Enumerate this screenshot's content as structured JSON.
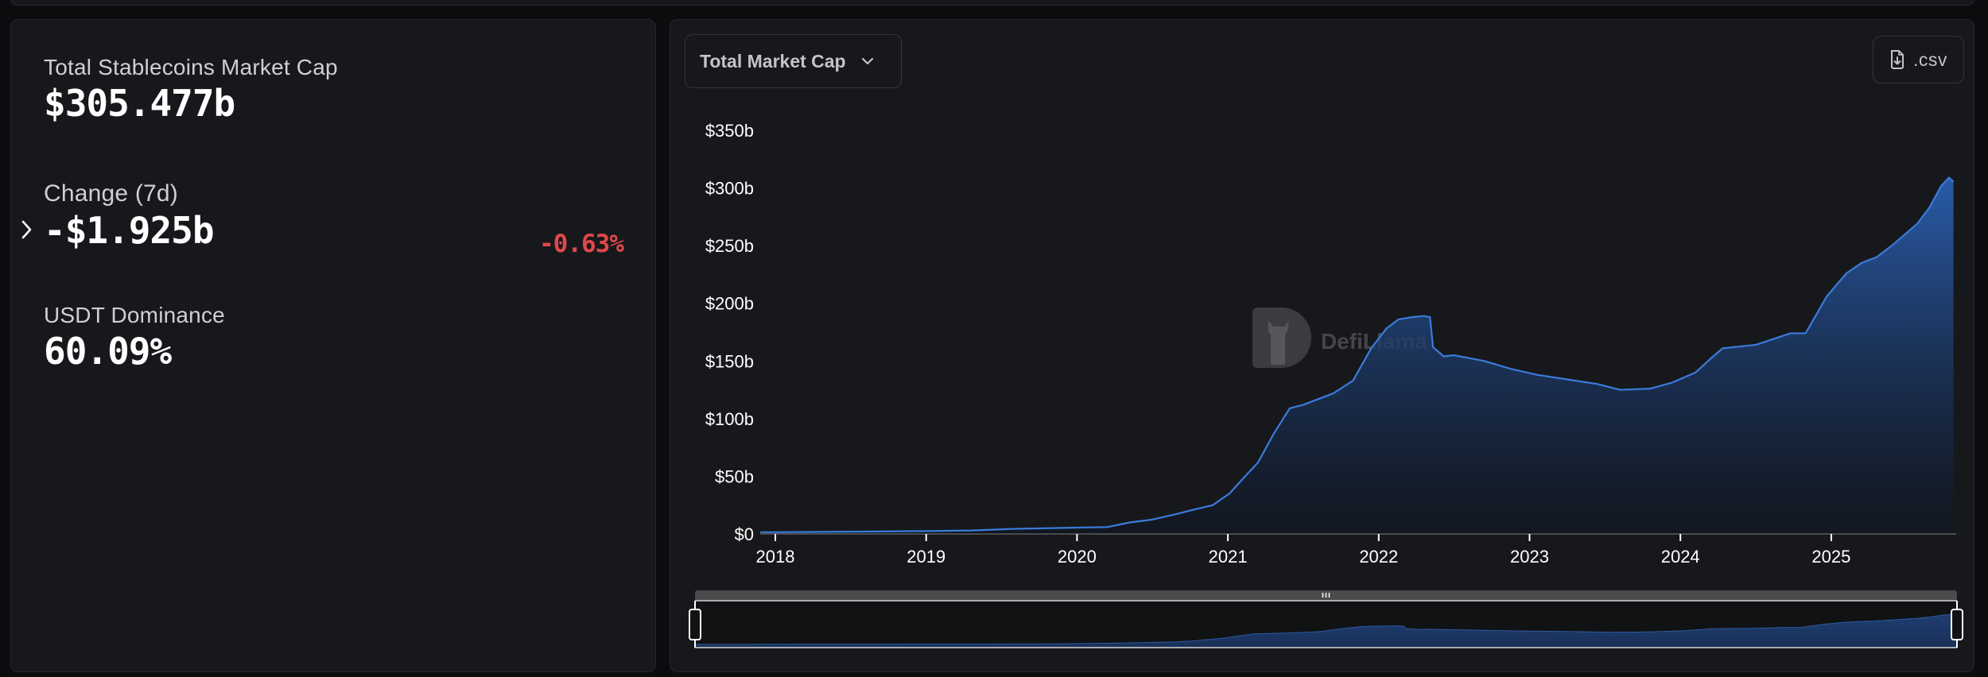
{
  "stats": {
    "market_cap": {
      "label": "Total Stablecoins Market Cap",
      "value": "$305.477b"
    },
    "change_7d": {
      "label": "Change (7d)",
      "value": "-$1.925b",
      "percent": "-0.63%",
      "percent_color": "#e0484a"
    },
    "usdt_dominance": {
      "label": "USDT Dominance",
      "value": "60.09%"
    }
  },
  "chart_toolbar": {
    "metric_select": "Total Market Cap",
    "csv_label": ".csv",
    "csv_icon": "file-download-icon",
    "dropdown_icon": "chevron-down-icon"
  },
  "watermark": {
    "text": "DefiLlama",
    "icon": "llama-logo-icon"
  },
  "colors": {
    "line": "#3a7bdc",
    "area_top": "#2a5fb0",
    "area_bottom": "#0f1522",
    "negative": "#e0484a",
    "panel_bg": "#17181b",
    "page_bg": "#0b0c0e"
  },
  "chart_data": {
    "type": "area",
    "title": "Total Market Cap",
    "xlabel": "",
    "ylabel": "",
    "ylim": [
      0,
      350
    ],
    "xlim": [
      2017.9,
      2025.81
    ],
    "grid": false,
    "legend": null,
    "y_ticks": [
      {
        "value": 0,
        "label": "$0"
      },
      {
        "value": 50,
        "label": "$50b"
      },
      {
        "value": 100,
        "label": "$100b"
      },
      {
        "value": 150,
        "label": "$150b"
      },
      {
        "value": 200,
        "label": "$200b"
      },
      {
        "value": 250,
        "label": "$250b"
      },
      {
        "value": 300,
        "label": "$300b"
      },
      {
        "value": 350,
        "label": "$350b"
      }
    ],
    "x_ticks": [
      {
        "value": 2018,
        "label": "2018"
      },
      {
        "value": 2019,
        "label": "2019"
      },
      {
        "value": 2020,
        "label": "2020"
      },
      {
        "value": 2021,
        "label": "2021"
      },
      {
        "value": 2022,
        "label": "2022"
      },
      {
        "value": 2023,
        "label": "2023"
      },
      {
        "value": 2024,
        "label": "2024"
      },
      {
        "value": 2025,
        "label": "2025"
      }
    ],
    "series": [
      {
        "name": "Total Stablecoins Market Cap ($b)",
        "x": [
          2017.9,
          2018.0,
          2018.5,
          2019.0,
          2019.3,
          2019.6,
          2020.0,
          2020.2,
          2020.35,
          2020.5,
          2020.65,
          2020.77,
          2020.9,
          2021.01,
          2021.1,
          2021.2,
          2021.3,
          2021.41,
          2021.5,
          2021.6,
          2021.7,
          2021.83,
          2021.95,
          2022.05,
          2022.13,
          2022.22,
          2022.3,
          2022.34,
          2022.36,
          2022.43,
          2022.5,
          2022.7,
          2022.88,
          2023.05,
          2023.25,
          2023.45,
          2023.6,
          2023.8,
          2023.94,
          2024.1,
          2024.2,
          2024.28,
          2024.5,
          2024.73,
          2024.83,
          2024.97,
          2025.1,
          2025.2,
          2025.3,
          2025.41,
          2025.57,
          2025.65,
          2025.73,
          2025.78,
          2025.81
        ],
        "values": [
          1.5,
          1.5,
          2.0,
          2.5,
          3.0,
          4.5,
          5.5,
          6.0,
          10.0,
          12.5,
          17.0,
          21.0,
          25.0,
          35.0,
          48.0,
          62.0,
          86.0,
          109.0,
          112.0,
          117.0,
          122.0,
          133.0,
          161.0,
          178.0,
          186.0,
          188.0,
          189.0,
          188.0,
          162.0,
          154.0,
          155.0,
          150.0,
          143.0,
          138.0,
          134.0,
          130.0,
          125.0,
          126.0,
          131.0,
          140.0,
          152.0,
          161.0,
          164.0,
          174.0,
          174.0,
          206.0,
          226.0,
          235.0,
          240.0,
          251.0,
          269.0,
          283.0,
          302.0,
          309.0,
          305.5
        ]
      }
    ],
    "annotations": [
      "DefiLlama watermark"
    ],
    "range_slider": {
      "start": 2017.9,
      "end": 2025.81
    }
  }
}
